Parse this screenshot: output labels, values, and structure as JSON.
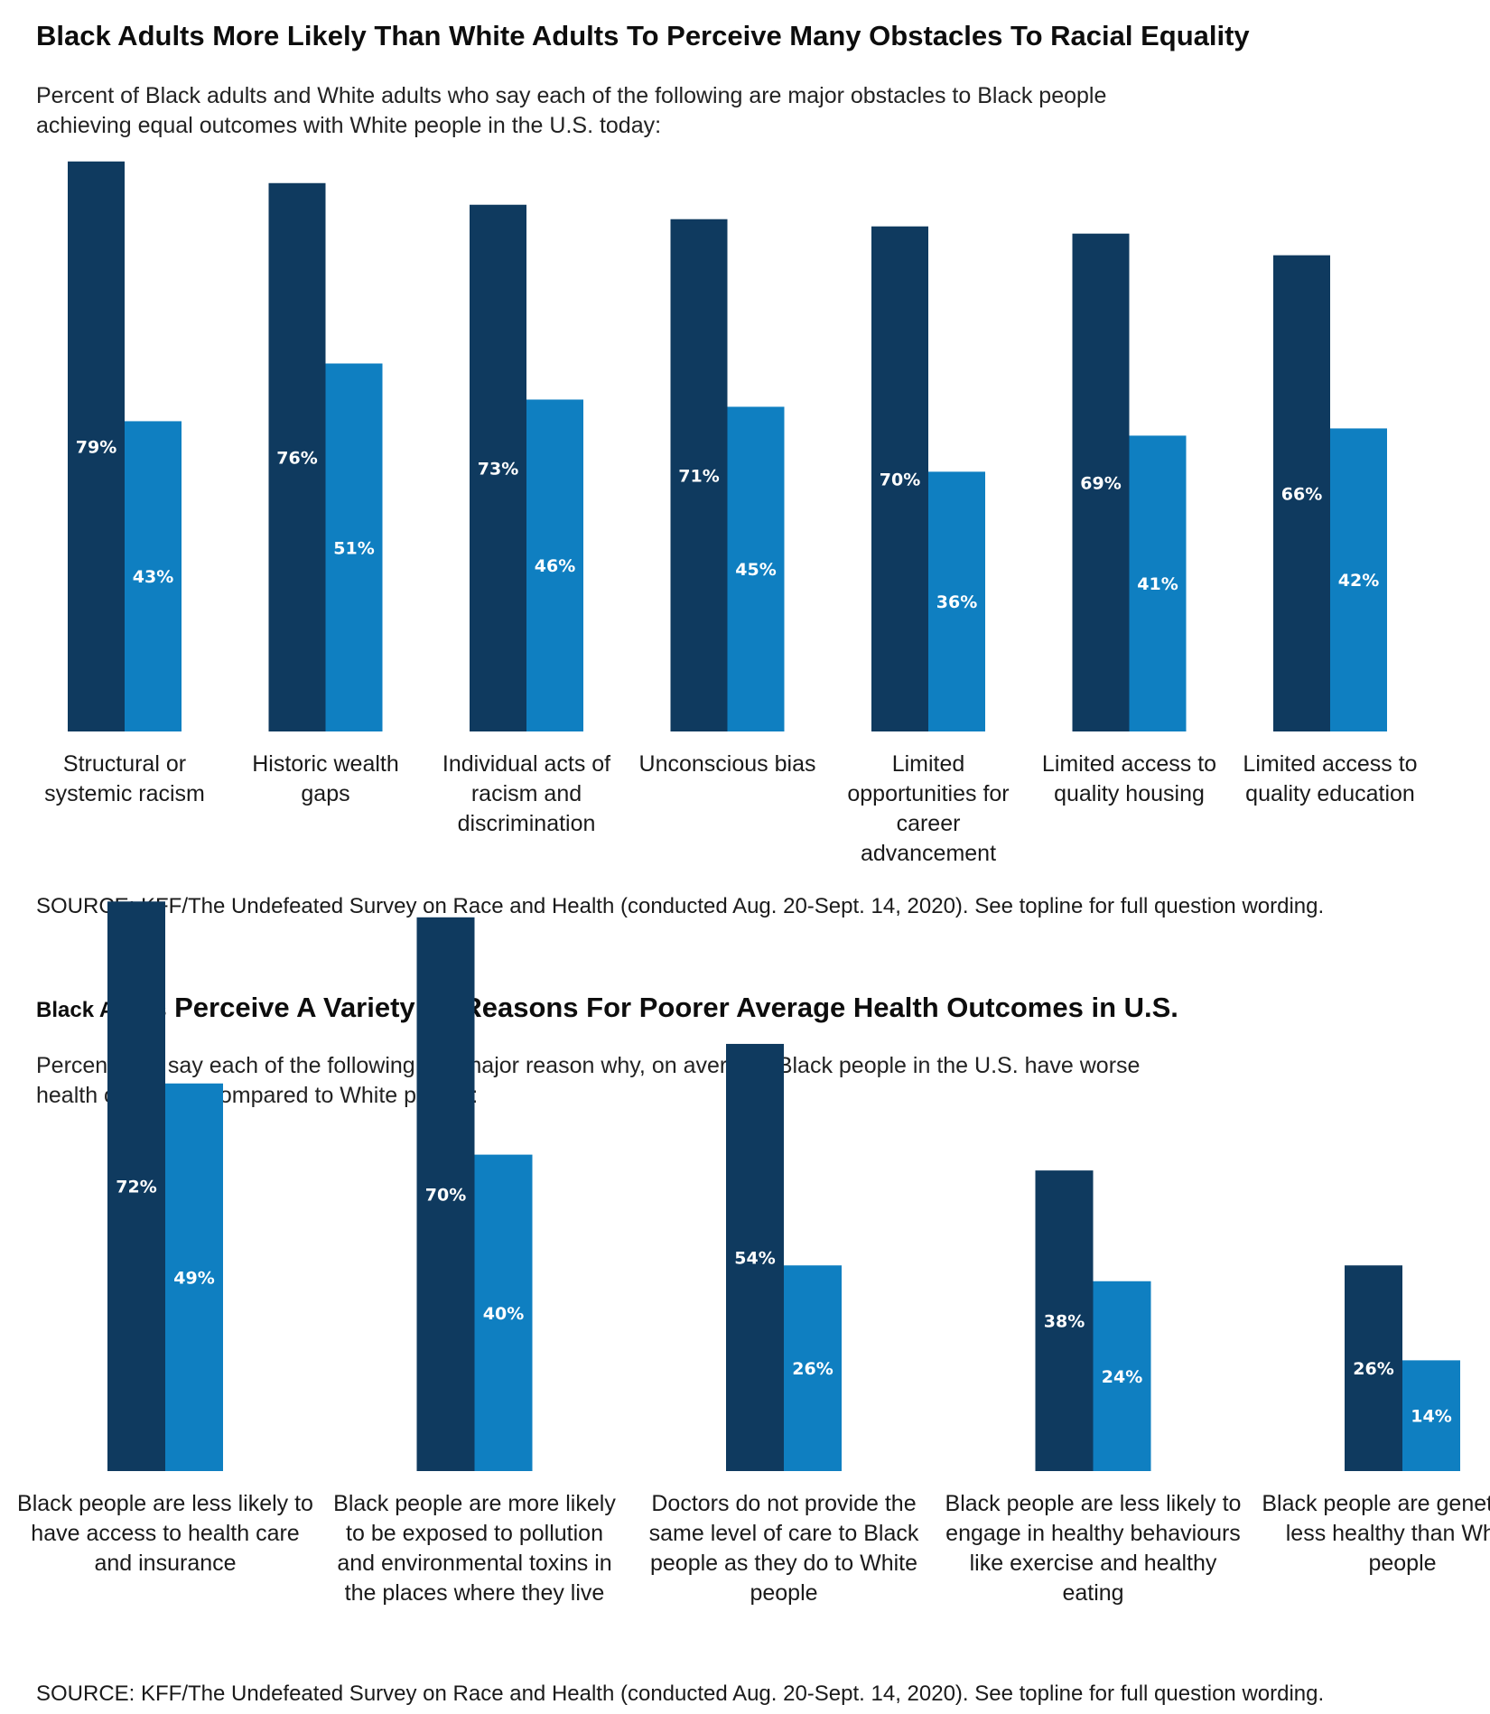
{
  "colors": {
    "black_adults": "#0f3a5f",
    "white_adults": "#0f7fc1",
    "value_label": "#ffffff"
  },
  "chart_data": [
    {
      "type": "bar",
      "title": "Black Adults More Likely Than White Adults To Perceive Many Obstacles To Racial Equality",
      "subtitle": "Percent of Black adults and White adults who say each of the following are major obstacles to Black people achieving equal outcomes with White people in the U.S. today:",
      "categories": [
        "Structural or systemic racism",
        "Historic wealth gaps",
        "Individual acts of racism and discrimination",
        "Unconscious bias",
        "Limited opportunities for career advancement",
        "Limited access to quality housing",
        "Limited access to quality education"
      ],
      "series": [
        {
          "values": [
            79,
            76,
            73,
            71,
            70,
            69,
            66
          ]
        },
        {
          "values": [
            43,
            51,
            46,
            45,
            36,
            41,
            42
          ]
        }
      ],
      "ylim": [
        0,
        100
      ],
      "grid": false,
      "source": "SOURCE: KFF/The Undefeated Survey on Race and Health (conducted Aug. 20-Sept. 14, 2020). See topline for full question wording."
    },
    {
      "type": "bar",
      "title_small": "Black Adults",
      "title": "Perceive A Variety Of Reasons For Poorer Average Health Outcomes in U.S.",
      "subtitle": "Percent who say each of the following is a major reason why, on average, Black people in the U.S. have worse health outcomes compared to White people:",
      "categories": [
        "Black people are less likely to have access to health care and insurance",
        "Black people are more likely to be exposed to pollution and environmental toxins in the places where they live",
        "Doctors do not provide the same level of care to Black people as they do to White people",
        "Black people are less likely to engage in healthy behaviours like exercise and healthy eating",
        "Black people are genetically less healthy than White people"
      ],
      "series": [
        {
          "values": [
            72,
            70,
            54,
            38,
            26
          ]
        },
        {
          "values": [
            49,
            40,
            26,
            24,
            14
          ]
        }
      ],
      "ylim": [
        0,
        100
      ],
      "grid": false,
      "source": "SOURCE: KFF/The Undefeated Survey on Race and Health (conducted Aug. 20-Sept. 14, 2020). See topline for full question wording."
    }
  ]
}
